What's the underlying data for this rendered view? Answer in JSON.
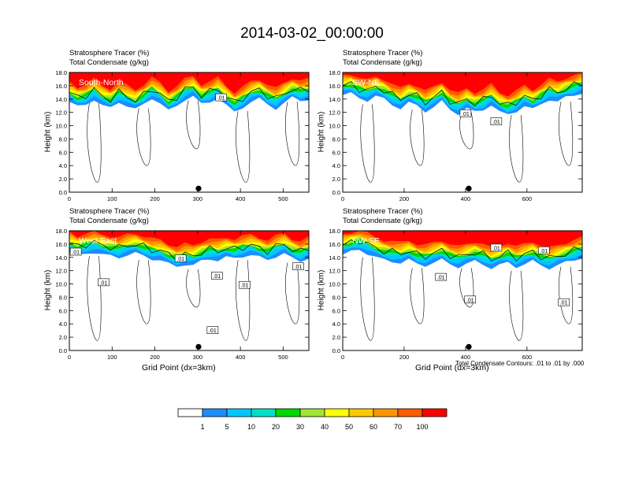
{
  "title": "2014-03-02_00:00:00",
  "field_label": "Stratosphere Tracer   (%)",
  "overlay_label": "Total Condensate   (g/kg)",
  "y_axis_title": "Height (km)",
  "x_axis_title": "Grid Point (dx=3km)",
  "contour_note": "Total Condensate Contours: .01 to .01 by .000",
  "colorbar": {
    "colors": [
      "#ffffff",
      "#1e8cff",
      "#00c8ff",
      "#00e0c8",
      "#00d800",
      "#a0e632",
      "#ffff00",
      "#ffc800",
      "#ff9600",
      "#ff5a00",
      "#ff0000"
    ],
    "labels": [
      "1",
      "5",
      "10",
      "20",
      "30",
      "40",
      "50",
      "60",
      "70",
      "100"
    ]
  },
  "chart_data": [
    {
      "type": "heatmap",
      "name": "South-North",
      "x_ticks": [
        "0",
        "100",
        "200",
        "300",
        "400",
        "500"
      ],
      "x_max": 560,
      "y_ticks": [
        "0.0",
        "2.0",
        "4.0",
        "6.0",
        "8.0",
        "10.0",
        "12.0",
        "14.0",
        "16.0",
        "18.0"
      ],
      "ylim": [
        0,
        18
      ],
      "marker_x": 280,
      "contour_labels": [
        {
          "text": ".01",
          "x": 355,
          "y": 14.2
        }
      ],
      "tracer_bottom_km": [
        13.6,
        12.8,
        13.2,
        14.0,
        13.0,
        12.6,
        13.6,
        13.0,
        12.4,
        13.2,
        14.2,
        13.4,
        12.2,
        13.0,
        14.0,
        14.4,
        13.2,
        13.6,
        14.2,
        13.0,
        12.0,
        12.8,
        13.6,
        14.0,
        13.2,
        12.6,
        13.4,
        14.2,
        13.8,
        14.0
      ]
    },
    {
      "type": "heatmap",
      "name": "SW-NE",
      "x_ticks": [
        "0",
        "200",
        "400",
        "600"
      ],
      "x_max": 780,
      "y_ticks": [
        "0.0",
        "2.0",
        "4.0",
        "6.0",
        "8.0",
        "10.0",
        "12.0",
        "14.0",
        "16.0",
        "18.0"
      ],
      "ylim": [
        0,
        18
      ],
      "marker_x": 390,
      "contour_labels": [
        {
          "text": ".01",
          "x": 400,
          "y": 11.8
        },
        {
          "text": ".01",
          "x": 500,
          "y": 10.6
        }
      ],
      "tracer_bottom_km": [
        14.6,
        14.8,
        14.2,
        13.8,
        14.4,
        14.0,
        13.2,
        12.6,
        13.4,
        13.0,
        12.2,
        12.8,
        13.6,
        12.4,
        11.8,
        12.6,
        12.0,
        12.4,
        13.2,
        12.0,
        11.6,
        12.2,
        13.0,
        12.4,
        13.2,
        14.0,
        13.6,
        14.2,
        14.6,
        15.0
      ]
    },
    {
      "type": "heatmap",
      "name": "West-East",
      "x_ticks": [
        "0",
        "100",
        "200",
        "300",
        "400",
        "500"
      ],
      "x_max": 560,
      "y_ticks": [
        "0.0",
        "2.0",
        "4.0",
        "6.0",
        "8.0",
        "10.0",
        "12.0",
        "14.0",
        "16.0",
        "18.0"
      ],
      "ylim": [
        0,
        18
      ],
      "marker_x": 280,
      "contour_labels": [
        {
          "text": ".01",
          "x": 15,
          "y": 14.8
        },
        {
          "text": ".01",
          "x": 80,
          "y": 10.2
        },
        {
          "text": ".01",
          "x": 260,
          "y": 13.8
        },
        {
          "text": ".01",
          "x": 345,
          "y": 11.2
        },
        {
          "text": ".01",
          "x": 410,
          "y": 9.8
        },
        {
          "text": ".01",
          "x": 335,
          "y": 3.0
        },
        {
          "text": ".01",
          "x": 535,
          "y": 12.6
        }
      ],
      "tracer_bottom_km": [
        14.8,
        14.2,
        14.6,
        14.8,
        14.4,
        14.2,
        14.0,
        14.4,
        14.6,
        14.2,
        13.8,
        13.6,
        13.0,
        12.6,
        13.0,
        12.8,
        13.4,
        13.8,
        13.6,
        14.0,
        13.8,
        14.2,
        14.4,
        14.0,
        13.6,
        14.2,
        14.6,
        13.8,
        13.4,
        14.0
      ]
    },
    {
      "type": "heatmap",
      "name": "NW-SE",
      "x_ticks": [
        "0",
        "200",
        "400",
        "600"
      ],
      "x_max": 780,
      "y_ticks": [
        "0.0",
        "2.0",
        "4.0",
        "6.0",
        "8.0",
        "10.0",
        "12.0",
        "14.0",
        "16.0",
        "18.0"
      ],
      "ylim": [
        0,
        18
      ],
      "marker_x": 390,
      "contour_labels": [
        {
          "text": ".01",
          "x": 320,
          "y": 11.0
        },
        {
          "text": ".01",
          "x": 415,
          "y": 7.6
        },
        {
          "text": ".01",
          "x": 500,
          "y": 15.4
        },
        {
          "text": ".01",
          "x": 655,
          "y": 15.0
        },
        {
          "text": ".01",
          "x": 720,
          "y": 7.2
        }
      ],
      "tracer_bottom_km": [
        14.4,
        14.8,
        15.2,
        14.6,
        14.0,
        13.6,
        13.4,
        13.2,
        13.6,
        13.0,
        12.8,
        13.2,
        13.6,
        13.0,
        12.6,
        13.0,
        13.4,
        13.0,
        12.4,
        12.8,
        13.2,
        12.6,
        13.0,
        13.4,
        12.8,
        12.4,
        12.8,
        13.2,
        13.6,
        14.0
      ]
    }
  ]
}
